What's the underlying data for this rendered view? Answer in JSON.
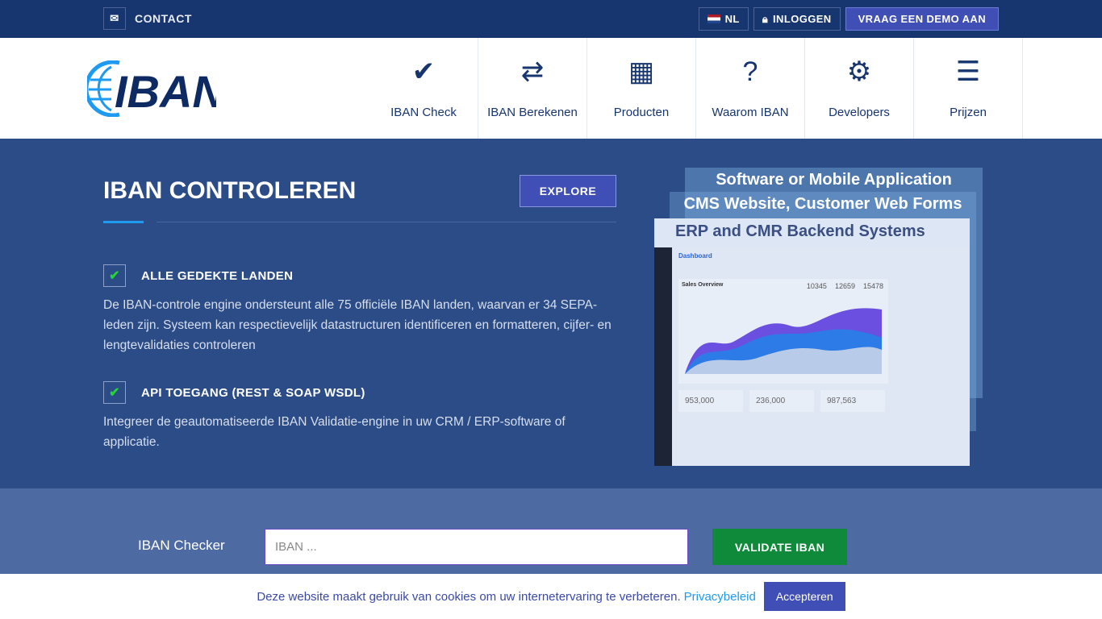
{
  "topbar": {
    "contact": "CONTACT",
    "lang": "NL",
    "login": "INLOGGEN",
    "demo": "VRAAG EEN DEMO AAN"
  },
  "logo": {
    "text": "IBAN"
  },
  "nav": [
    {
      "label": "IBAN Check",
      "icon": "✔"
    },
    {
      "label": "IBAN Berekenen",
      "icon": "⇄"
    },
    {
      "label": "Producten",
      "icon": "▦"
    },
    {
      "label": "Waarom IBAN",
      "icon": "?"
    },
    {
      "label": "Developers",
      "icon": "⚙"
    },
    {
      "label": "Prijzen",
      "icon": "☰"
    }
  ],
  "hero": {
    "title": "IBAN CONTROLEREN",
    "explore": "EXPLORE",
    "features": [
      {
        "title": "ALLE GEDEKTE LANDEN",
        "text": "De IBAN-controle engine ondersteunt alle 75 officiële IBAN landen, waarvan er 34 SEPA-leden zijn. Systeem kan respectievelijk datastructuren identificeren en formatteren, cijfer- en lengtevalidaties controleren"
      },
      {
        "title": "API TOEGANG (REST & SOAP WSDL)",
        "text": "Integreer de geautomatiseerde IBAN Validatie-engine in uw CRM / ERP-software of applicatie."
      }
    ],
    "image": {
      "layer1": "Software or Mobile Application",
      "layer2": "CMS Website, Customer Web Forms",
      "layer3": "ERP and CMR Backend Systems",
      "dashboard": "Dashboard",
      "sales": "Sales Overview",
      "stats": [
        "10345",
        "12659",
        "15478"
      ],
      "totals": [
        "953,000",
        "236,000",
        "987,563"
      ]
    }
  },
  "checker": {
    "label": "IBAN Checker",
    "placeholder": "IBAN ...",
    "button": "VALIDATE IBAN"
  },
  "cookie": {
    "text": "Deze website maakt gebruik van cookies om uw internetervaring te verbeteren.",
    "link": "Privacybeleid",
    "accept": "Accepteren"
  }
}
